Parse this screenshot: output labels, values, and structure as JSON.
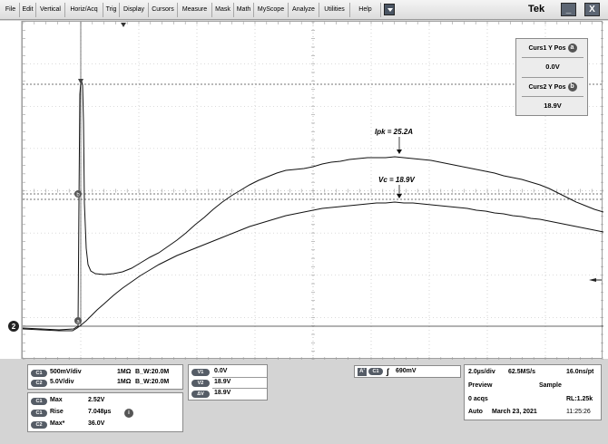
{
  "menu": {
    "items": [
      "File",
      "Edit",
      "Vertical",
      "Horiz/Acq",
      "Trig",
      "Display",
      "Cursors",
      "Measure",
      "Mask",
      "Math",
      "MyScope",
      "Analyze",
      "Utilities",
      "Help"
    ],
    "brand": "Tek",
    "minimize_label": "_",
    "close_label": "X"
  },
  "waveform": {
    "ipk_annotation": "Ipk = 25.2A",
    "vc_annotation": "Vc = 18.9V",
    "channel_marker": "2",
    "cursor_a_marker": "a",
    "cursor_b_marker": "b"
  },
  "cursors": {
    "curs1_label": "Curs1 Y Pos",
    "curs1_badge": "a",
    "curs1_value": "0.0V",
    "curs2_label": "Curs2 Y Pos",
    "curs2_badge": "b",
    "curs2_value": "18.9V"
  },
  "channels": [
    {
      "badge": "C1",
      "scale": "500mV/div",
      "impedance": "1MΩ",
      "bw": "B_W:20.0M"
    },
    {
      "badge": "C2",
      "scale": "5.0V/div",
      "impedance": "1MΩ",
      "bw": "B_W:20.0M"
    }
  ],
  "measurements": [
    {
      "badge": "C1",
      "name": "Max",
      "value": "2.52V"
    },
    {
      "badge": "C1",
      "name": "Rise",
      "value": "7.048µs"
    },
    {
      "badge": "C2",
      "name": "Max*",
      "value": "36.0V"
    }
  ],
  "measurement_info_badge": "i",
  "cursor_values": [
    {
      "badge": "V1",
      "value": "0.0V"
    },
    {
      "badge": "V2",
      "value": "18.9V"
    },
    {
      "badge": "ΔV",
      "value": "18.9V"
    }
  ],
  "trigger": {
    "source": "A'",
    "channel": "C1",
    "slope": "∫",
    "level": "690mV"
  },
  "acquisition": {
    "timebase": "2.0µs/div",
    "sample_rate": "62.5MS/s",
    "resolution": "16.0ns/pt",
    "mode": "Preview",
    "sampling": "Sample",
    "acqs": "0 acqs",
    "record_length": "RL:1.25k",
    "trigger_mode": "Auto",
    "date": "March 23, 2021",
    "time": "11:25:26"
  }
}
